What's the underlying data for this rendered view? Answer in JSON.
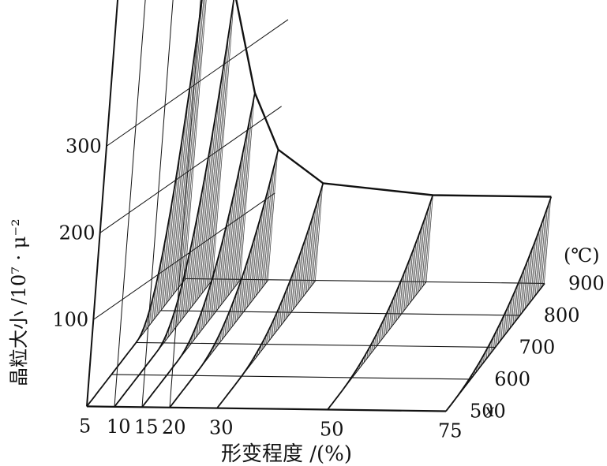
{
  "chart_data": {
    "type": "surface",
    "xlabel": "形变程度 /(%)",
    "ylabel": "晶粒大小 /10⁷ · μ⁻²",
    "temp_unit": "(℃)",
    "x_axis_letter": "x",
    "x_ticks": [
      "5",
      "10",
      "15",
      "20",
      "30",
      "50",
      "75"
    ],
    "z_ticks": [
      "100",
      "200",
      "300"
    ],
    "temp_ticks": [
      "500",
      "600",
      "700",
      "800",
      "900"
    ],
    "deformation": [
      5,
      10,
      15,
      20,
      30,
      50,
      75
    ],
    "grain_size_at_900C": [
      420,
      330,
      215,
      150,
      112,
      100,
      100
    ],
    "floor_slices_percent": [
      5,
      10,
      15,
      20,
      30,
      50,
      75
    ],
    "grain_growth_onset_C": [
      700,
      670,
      640,
      610,
      580,
      540,
      520
    ]
  }
}
